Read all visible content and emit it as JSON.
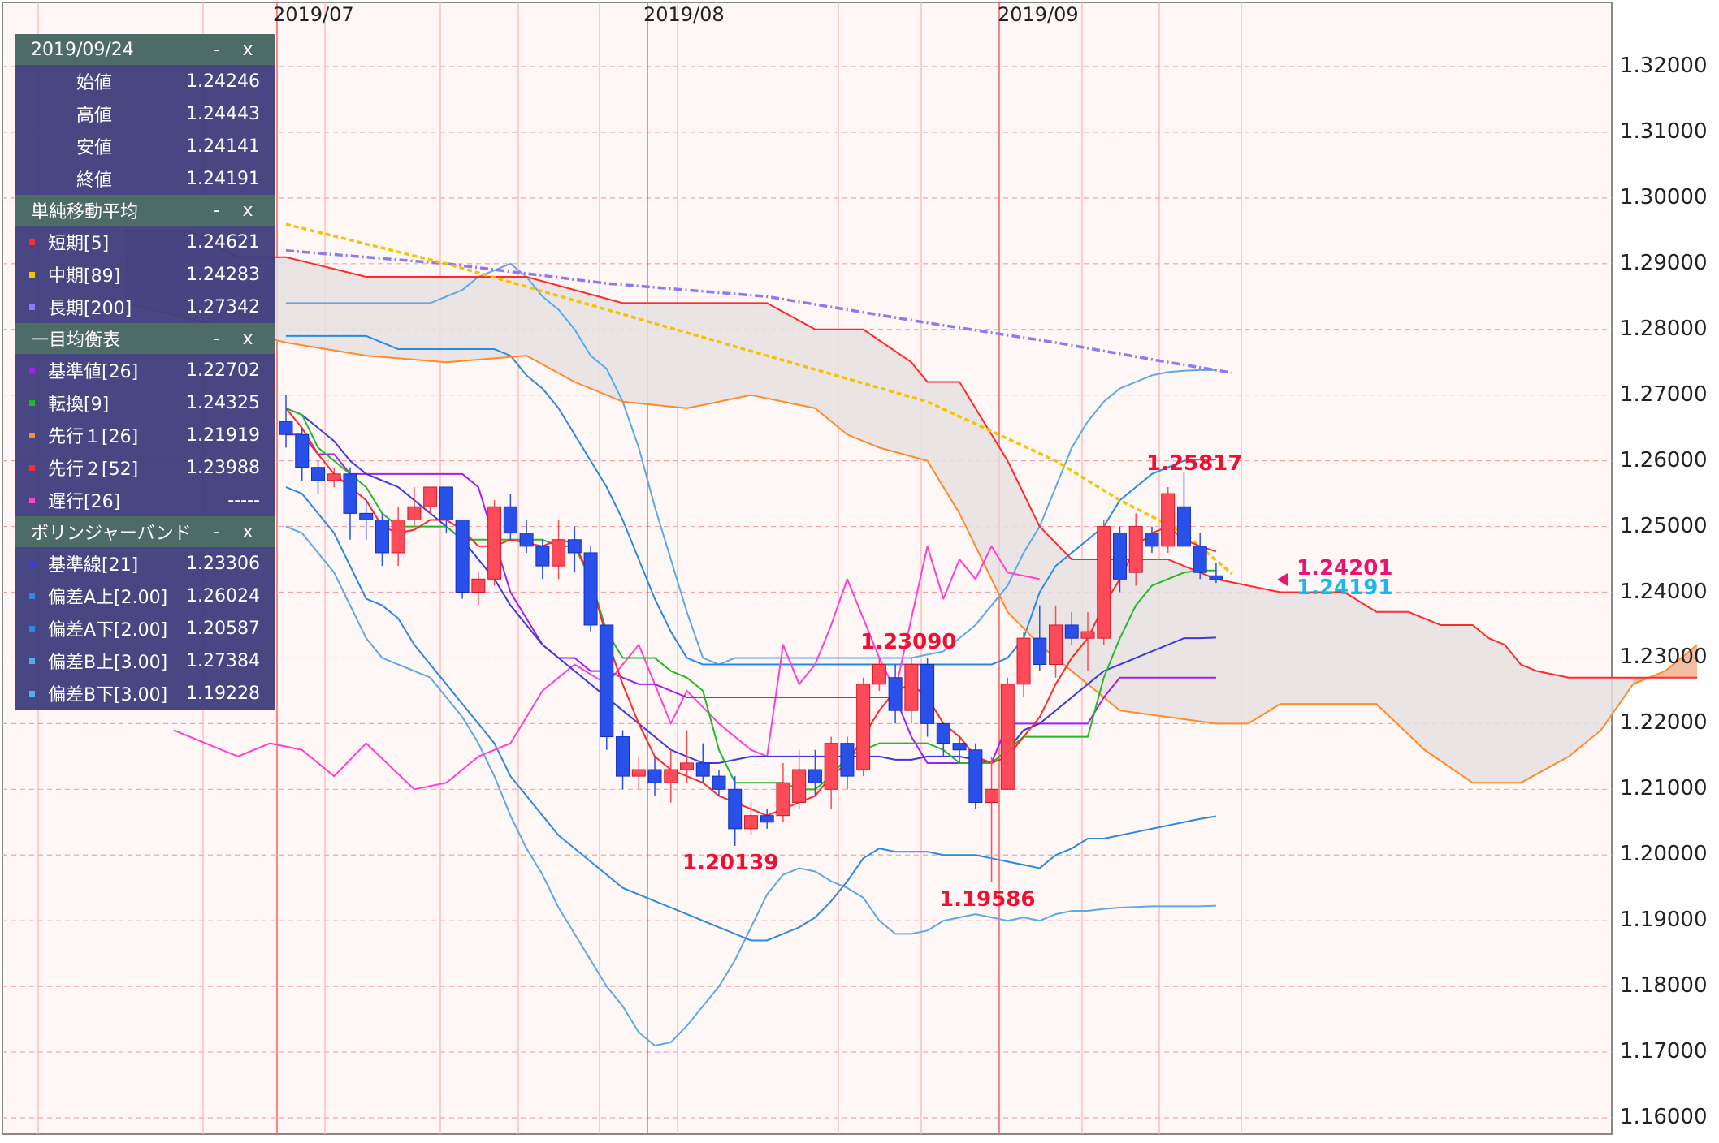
{
  "header_dates": [
    "2019/07",
    "2019/08",
    "2019/09"
  ],
  "y_ticks": [
    "1.32000",
    "1.31000",
    "1.30000",
    "1.29000",
    "1.28000",
    "1.27000",
    "1.26000",
    "1.25000",
    "1.24000",
    "1.23000",
    "1.22000",
    "1.21000",
    "1.20000",
    "1.19000",
    "1.18000",
    "1.17000",
    "1.16000"
  ],
  "annotations": {
    "high_sep": "1.25817",
    "high_aug": "1.23090",
    "low_aug": "1.20139",
    "low_sep": "1.19586",
    "cur_bid": "1.24201",
    "cur_close": "1.24191"
  },
  "panel": {
    "ohlc": {
      "date": "2019/09/24",
      "rows": [
        {
          "label": "始値",
          "value": "1.24246"
        },
        {
          "label": "高値",
          "value": "1.24443"
        },
        {
          "label": "安値",
          "value": "1.24141"
        },
        {
          "label": "終値",
          "value": "1.24191"
        }
      ]
    },
    "sma": {
      "title": "単純移動平均",
      "rows": [
        {
          "label": "短期[5]",
          "value": "1.24621",
          "color": "#ff2a2a"
        },
        {
          "label": "中期[89]",
          "value": "1.24283",
          "color": "#f5c400"
        },
        {
          "label": "長期[200]",
          "value": "1.27342",
          "color": "#8a7cf0"
        }
      ]
    },
    "ichimoku": {
      "title": "一目均衡表",
      "rows": [
        {
          "label": "基準値[26]",
          "value": "1.22702",
          "color": "#a020f0"
        },
        {
          "label": "転換[9]",
          "value": "1.24325",
          "color": "#22bb22"
        },
        {
          "label": "先行１[26]",
          "value": "1.21919",
          "color": "#ff8a2a"
        },
        {
          "label": "先行２[52]",
          "value": "1.23988",
          "color": "#ff2a2a"
        },
        {
          "label": "遅行[26]",
          "value": "-----",
          "color": "#ff40d0"
        }
      ]
    },
    "bollinger": {
      "title": "ボリンジャーバンド",
      "rows": [
        {
          "label": "基準線[21]",
          "value": "1.23306",
          "color": "#3a3ae0"
        },
        {
          "label": "偏差A上[2.00]",
          "value": "1.26024",
          "color": "#2a8ae0"
        },
        {
          "label": "偏差A下[2.00]",
          "value": "1.20587",
          "color": "#2a8ae0"
        },
        {
          "label": "偏差B上[3.00]",
          "value": "1.27384",
          "color": "#5aaae8"
        },
        {
          "label": "偏差B下[3.00]",
          "value": "1.19228",
          "color": "#5aaae8"
        }
      ]
    },
    "buttons": {
      "minimize": "-",
      "close": "x"
    }
  },
  "chart_data": {
    "type": "candlestick",
    "y_range": [
      1.16,
      1.32
    ],
    "candles": [
      [
        1.266,
        1.27,
        1.262,
        1.264
      ],
      [
        1.264,
        1.265,
        1.257,
        1.259
      ],
      [
        1.259,
        1.26,
        1.255,
        1.257
      ],
      [
        1.257,
        1.259,
        1.256,
        1.258
      ],
      [
        1.258,
        1.259,
        1.248,
        1.252
      ],
      [
        1.252,
        1.254,
        1.248,
        1.251
      ],
      [
        1.251,
        1.252,
        1.244,
        1.246
      ],
      [
        1.246,
        1.253,
        1.244,
        1.251
      ],
      [
        1.251,
        1.256,
        1.25,
        1.253
      ],
      [
        1.253,
        1.256,
        1.252,
        1.256
      ],
      [
        1.256,
        1.256,
        1.249,
        1.251
      ],
      [
        1.251,
        1.251,
        1.239,
        1.24
      ],
      [
        1.24,
        1.243,
        1.238,
        1.242
      ],
      [
        1.242,
        1.254,
        1.241,
        1.253
      ],
      [
        1.253,
        1.255,
        1.248,
        1.249
      ],
      [
        1.249,
        1.251,
        1.246,
        1.247
      ],
      [
        1.247,
        1.248,
        1.242,
        1.244
      ],
      [
        1.244,
        1.251,
        1.242,
        1.248
      ],
      [
        1.248,
        1.25,
        1.243,
        1.246
      ],
      [
        1.246,
        1.247,
        1.234,
        1.235
      ],
      [
        1.235,
        1.235,
        1.216,
        1.218
      ],
      [
        1.218,
        1.219,
        1.21,
        1.212
      ],
      [
        1.212,
        1.215,
        1.21,
        1.213
      ],
      [
        1.213,
        1.215,
        1.209,
        1.211
      ],
      [
        1.211,
        1.216,
        1.208,
        1.213
      ],
      [
        1.213,
        1.219,
        1.211,
        1.214
      ],
      [
        1.214,
        1.217,
        1.211,
        1.212
      ],
      [
        1.212,
        1.213,
        1.209,
        1.21
      ],
      [
        1.21,
        1.212,
        1.2014,
        1.204
      ],
      [
        1.204,
        1.208,
        1.203,
        1.206
      ],
      [
        1.206,
        1.207,
        1.204,
        1.205
      ],
      [
        1.206,
        1.214,
        1.205,
        1.211
      ],
      [
        1.208,
        1.216,
        1.207,
        1.213
      ],
      [
        1.213,
        1.216,
        1.209,
        1.211
      ],
      [
        1.21,
        1.218,
        1.207,
        1.217
      ],
      [
        1.217,
        1.218,
        1.21,
        1.212
      ],
      [
        1.213,
        1.227,
        1.212,
        1.226
      ],
      [
        1.226,
        1.23,
        1.225,
        1.229
      ],
      [
        1.227,
        1.229,
        1.22,
        1.222
      ],
      [
        1.222,
        1.23,
        1.22,
        1.229
      ],
      [
        1.229,
        1.23,
        1.218,
        1.22
      ],
      [
        1.22,
        1.22,
        1.215,
        1.217
      ],
      [
        1.217,
        1.218,
        1.214,
        1.216
      ],
      [
        1.216,
        1.217,
        1.207,
        1.208
      ],
      [
        1.208,
        1.215,
        1.1959,
        1.21
      ],
      [
        1.21,
        1.227,
        1.21,
        1.226
      ],
      [
        1.226,
        1.234,
        1.224,
        1.233
      ],
      [
        1.233,
        1.238,
        1.228,
        1.229
      ],
      [
        1.229,
        1.238,
        1.227,
        1.235
      ],
      [
        1.235,
        1.237,
        1.232,
        1.233
      ],
      [
        1.233,
        1.237,
        1.228,
        1.234
      ],
      [
        1.233,
        1.251,
        1.232,
        1.25
      ],
      [
        1.249,
        1.25,
        1.24,
        1.242
      ],
      [
        1.243,
        1.252,
        1.241,
        1.25
      ],
      [
        1.249,
        1.25,
        1.246,
        1.247
      ],
      [
        1.247,
        1.256,
        1.246,
        1.255
      ],
      [
        1.253,
        1.2582,
        1.247,
        1.247
      ],
      [
        1.247,
        1.249,
        1.242,
        1.243
      ],
      [
        1.2425,
        1.2444,
        1.2414,
        1.2419
      ]
    ],
    "sma_short_5": [
      1.268,
      1.265,
      1.261,
      1.258,
      1.256,
      1.254,
      1.25,
      1.249,
      1.2495,
      1.251,
      1.251,
      1.2495,
      1.247,
      1.247,
      1.248,
      1.2475,
      1.247,
      1.248,
      1.2475,
      1.242,
      1.233,
      1.226,
      1.22,
      1.215,
      1.213,
      1.212,
      1.211,
      1.209,
      1.208,
      1.207,
      1.206,
      1.207,
      1.208,
      1.209,
      1.212,
      1.214,
      1.218,
      1.222,
      1.225,
      1.226,
      1.224,
      1.22,
      1.218,
      1.215,
      1.214,
      1.215,
      1.218,
      1.221,
      1.226,
      1.23,
      1.233,
      1.238,
      1.242,
      1.247,
      1.249,
      1.25,
      1.248,
      1.247,
      1.2462
    ],
    "sma_mid_89": [
      [
        0,
        1.296
      ],
      [
        10,
        1.29
      ],
      [
        20,
        1.283
      ],
      [
        30,
        1.276
      ],
      [
        40,
        1.269
      ],
      [
        48,
        1.26
      ],
      [
        52,
        1.254
      ],
      [
        56,
        1.249
      ],
      [
        59,
        1.2428
      ]
    ],
    "sma_long_200": [
      [
        0,
        1.292
      ],
      [
        10,
        1.29
      ],
      [
        20,
        1.287
      ],
      [
        30,
        1.285
      ],
      [
        40,
        1.281
      ],
      [
        48,
        1.278
      ],
      [
        55,
        1.275
      ],
      [
        59,
        1.2734
      ]
    ],
    "ichimoku_base_26": [
      1.264,
      1.264,
      1.261,
      1.261,
      1.258,
      1.258,
      1.258,
      1.258,
      1.258,
      1.258,
      1.258,
      1.258,
      1.256,
      1.248,
      1.24,
      1.236,
      1.232,
      1.23,
      1.23,
      1.228,
      1.228,
      1.227,
      1.226,
      1.226,
      1.225,
      1.224,
      1.224,
      1.224,
      1.224,
      1.224,
      1.224,
      1.224,
      1.224,
      1.224,
      1.224,
      1.224,
      1.224,
      1.224,
      1.224,
      1.218,
      1.214,
      1.214,
      1.214,
      1.214,
      1.214,
      1.22,
      1.22,
      1.22,
      1.22,
      1.22,
      1.22,
      1.224,
      1.227,
      1.227,
      1.227,
      1.227,
      1.227,
      1.227,
      1.227
    ],
    "ichimoku_conv_9": [
      1.268,
      1.267,
      1.262,
      1.26,
      1.258,
      1.256,
      1.252,
      1.25,
      1.25,
      1.25,
      1.25,
      1.248,
      1.248,
      1.248,
      1.248,
      1.248,
      1.248,
      1.247,
      1.247,
      1.242,
      1.234,
      1.23,
      1.23,
      1.23,
      1.228,
      1.227,
      1.225,
      1.216,
      1.211,
      1.211,
      1.211,
      1.211,
      1.21,
      1.21,
      1.212,
      1.215,
      1.216,
      1.217,
      1.217,
      1.217,
      1.217,
      1.216,
      1.214,
      1.214,
      1.214,
      1.216,
      1.218,
      1.218,
      1.218,
      1.218,
      1.218,
      1.227,
      1.233,
      1.238,
      1.241,
      1.242,
      1.243,
      1.2433,
      1.2433
    ],
    "ichimoku_lagging": [
      [
        -7,
        1.219
      ],
      [
        -5,
        1.217
      ],
      [
        -3,
        1.215
      ],
      [
        -1,
        1.217
      ],
      [
        1,
        1.216
      ],
      [
        3,
        1.212
      ],
      [
        5,
        1.217
      ],
      [
        8,
        1.21
      ],
      [
        10,
        1.211
      ],
      [
        12,
        1.215
      ],
      [
        14,
        1.217
      ],
      [
        16,
        1.225
      ],
      [
        18,
        1.229
      ],
      [
        20,
        1.226
      ],
      [
        22,
        1.232
      ],
      [
        24,
        1.22
      ],
      [
        25,
        1.225
      ],
      [
        27,
        1.22
      ],
      [
        29,
        1.216
      ],
      [
        30,
        1.215
      ],
      [
        31,
        1.232
      ],
      [
        32,
        1.226
      ],
      [
        33,
        1.229
      ],
      [
        34,
        1.235
      ],
      [
        35,
        1.242
      ],
      [
        37,
        1.23
      ],
      [
        38,
        1.225
      ],
      [
        40,
        1.247
      ],
      [
        41,
        1.239
      ],
      [
        42,
        1.245
      ],
      [
        43,
        1.242
      ],
      [
        44,
        1.247
      ],
      [
        45,
        1.243
      ],
      [
        47,
        1.242
      ]
    ],
    "senkou_span_a": [
      [
        -10,
        1.284
      ],
      [
        -5,
        1.281
      ],
      [
        0,
        1.278
      ],
      [
        5,
        1.276
      ],
      [
        10,
        1.275
      ],
      [
        15,
        1.276
      ],
      [
        18,
        1.272
      ],
      [
        21,
        1.269
      ],
      [
        25,
        1.268
      ],
      [
        29,
        1.27
      ],
      [
        33,
        1.268
      ],
      [
        35,
        1.264
      ],
      [
        37,
        1.262
      ],
      [
        40,
        1.26
      ],
      [
        42,
        1.252
      ],
      [
        45,
        1.237
      ],
      [
        47,
        1.232
      ],
      [
        48,
        1.23
      ],
      [
        51,
        1.224
      ],
      [
        52,
        1.222
      ],
      [
        55,
        1.221
      ],
      [
        58,
        1.22
      ],
      [
        60,
        1.22
      ],
      [
        62,
        1.223
      ],
      [
        65,
        1.223
      ],
      [
        68,
        1.223
      ],
      [
        71,
        1.216
      ],
      [
        74,
        1.211
      ],
      [
        77,
        1.211
      ],
      [
        80,
        1.215
      ],
      [
        82,
        1.219
      ],
      [
        84,
        1.226
      ],
      [
        86,
        1.228
      ],
      [
        88,
        1.232
      ]
    ],
    "senkou_span_b": [
      [
        -10,
        1.295
      ],
      [
        -6,
        1.295
      ],
      [
        -3,
        1.291
      ],
      [
        0,
        1.291
      ],
      [
        5,
        1.288
      ],
      [
        10,
        1.288
      ],
      [
        15,
        1.288
      ],
      [
        21,
        1.284
      ],
      [
        25,
        1.284
      ],
      [
        30,
        1.284
      ],
      [
        33,
        1.28
      ],
      [
        36,
        1.28
      ],
      [
        39,
        1.275
      ],
      [
        40,
        1.272
      ],
      [
        42,
        1.272
      ],
      [
        45,
        1.26
      ],
      [
        47,
        1.25
      ],
      [
        49,
        1.245
      ],
      [
        50,
        1.245
      ],
      [
        55,
        1.245
      ],
      [
        58,
        1.242
      ],
      [
        62,
        1.24
      ],
      [
        66,
        1.24
      ],
      [
        68,
        1.237
      ],
      [
        70,
        1.237
      ],
      [
        72,
        1.235
      ],
      [
        74,
        1.235
      ],
      [
        75,
        1.233
      ],
      [
        76,
        1.232
      ],
      [
        77,
        1.229
      ],
      [
        78,
        1.228
      ],
      [
        80,
        1.227
      ],
      [
        84,
        1.227
      ],
      [
        86,
        1.227
      ],
      [
        88,
        1.227
      ]
    ],
    "bb_mid_21": [
      1.268,
      1.267,
      1.265,
      1.263,
      1.26,
      1.258,
      1.257,
      1.256,
      1.254,
      1.252,
      1.25,
      1.248,
      1.245,
      1.242,
      1.238,
      1.235,
      1.232,
      1.23,
      1.228,
      1.226,
      1.224,
      1.222,
      1.22,
      1.218,
      1.216,
      1.215,
      1.214,
      1.214,
      1.2145,
      1.215,
      1.215,
      1.215,
      1.215,
      1.215,
      1.215,
      1.215,
      1.215,
      1.215,
      1.2145,
      1.2145,
      1.215,
      1.215,
      1.215,
      1.2145,
      1.214,
      1.216,
      1.219,
      1.22,
      1.222,
      1.224,
      1.226,
      1.228,
      1.229,
      1.23,
      1.231,
      1.232,
      1.233,
      1.233,
      1.2331
    ],
    "bb_upper_2": [
      1.279,
      1.279,
      1.279,
      1.279,
      1.279,
      1.279,
      1.278,
      1.277,
      1.277,
      1.277,
      1.277,
      1.277,
      1.277,
      1.277,
      1.276,
      1.273,
      1.271,
      1.268,
      1.264,
      1.26,
      1.256,
      1.251,
      1.245,
      1.239,
      1.234,
      1.23,
      1.229,
      1.229,
      1.229,
      1.229,
      1.229,
      1.229,
      1.229,
      1.229,
      1.229,
      1.229,
      1.229,
      1.229,
      1.229,
      1.229,
      1.229,
      1.229,
      1.229,
      1.229,
      1.229,
      1.23,
      1.233,
      1.24,
      1.244,
      1.246,
      1.248,
      1.25,
      1.254,
      1.256,
      1.258,
      1.259,
      1.26,
      1.2602,
      1.2602
    ],
    "bb_lower_2": [
      1.256,
      1.255,
      1.252,
      1.249,
      1.244,
      1.239,
      1.238,
      1.236,
      1.232,
      1.229,
      1.226,
      1.223,
      1.22,
      1.217,
      1.212,
      1.209,
      1.206,
      1.203,
      1.201,
      1.199,
      1.197,
      1.195,
      1.194,
      1.193,
      1.192,
      1.191,
      1.19,
      1.189,
      1.188,
      1.187,
      1.187,
      1.188,
      1.189,
      1.1905,
      1.193,
      1.196,
      1.1995,
      1.201,
      1.2005,
      1.2005,
      1.2005,
      1.2,
      1.2,
      1.2,
      1.1995,
      1.199,
      1.1985,
      1.198,
      1.2,
      1.201,
      1.2025,
      1.2025,
      1.203,
      1.2035,
      1.204,
      1.2045,
      1.205,
      1.2055,
      1.2059
    ],
    "bb_upper_3": [
      1.284,
      1.284,
      1.284,
      1.284,
      1.284,
      1.284,
      1.284,
      1.284,
      1.284,
      1.284,
      1.285,
      1.286,
      1.288,
      1.289,
      1.29,
      1.288,
      1.285,
      1.283,
      1.28,
      1.276,
      1.274,
      1.269,
      1.262,
      1.253,
      1.245,
      1.237,
      1.23,
      1.229,
      1.23,
      1.23,
      1.23,
      1.23,
      1.23,
      1.23,
      1.23,
      1.23,
      1.23,
      1.23,
      1.23,
      1.23,
      1.2305,
      1.231,
      1.233,
      1.235,
      1.238,
      1.241,
      1.246,
      1.25,
      1.256,
      1.262,
      1.266,
      1.269,
      1.271,
      1.272,
      1.273,
      1.2735,
      1.2737,
      1.2738,
      1.2738
    ],
    "bb_lower_3": [
      1.25,
      1.249,
      1.246,
      1.243,
      1.238,
      1.233,
      1.23,
      1.229,
      1.228,
      1.227,
      1.224,
      1.221,
      1.217,
      1.212,
      1.206,
      1.201,
      1.197,
      1.192,
      1.188,
      1.184,
      1.18,
      1.177,
      1.173,
      1.171,
      1.1715,
      1.174,
      1.177,
      1.18,
      1.184,
      1.189,
      1.194,
      1.197,
      1.198,
      1.1975,
      1.196,
      1.195,
      1.1935,
      1.19,
      1.188,
      1.188,
      1.1885,
      1.19,
      1.1905,
      1.191,
      1.1905,
      1.19,
      1.1905,
      1.19,
      1.191,
      1.1915,
      1.1915,
      1.1918,
      1.192,
      1.1921,
      1.1922,
      1.1922,
      1.1922,
      1.1922,
      1.1923
    ]
  },
  "colors": {
    "bull": "#ff4a5a",
    "bear": "#2a50ea",
    "grid_h": "#f2a3a8",
    "grid_v": "#ffb0b0",
    "month_line": "#ff5a5a",
    "plot_bg": "#fff6f6",
    "cloud": "#e6e1e1",
    "cloud_warm": "#f5b899"
  }
}
